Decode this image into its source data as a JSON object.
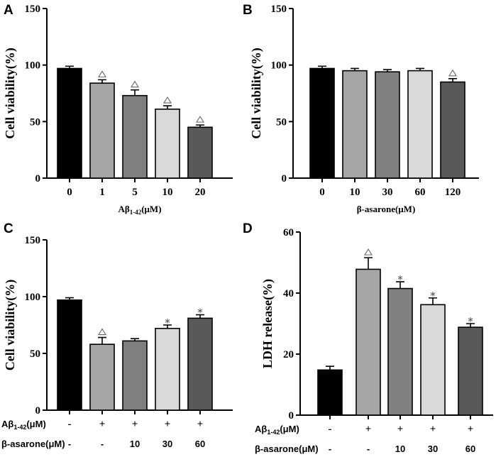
{
  "panel_letters": [
    "A",
    "B",
    "C",
    "D"
  ],
  "shared_labels": {
    "abeta_row_label": "Aβ1-42(μM)",
    "abeta_main": "Aβ",
    "abeta_sub": "1-42",
    "abeta_unit": "(μM)",
    "asarone_row_label": "β-asarone(μM)"
  },
  "chart_data": [
    {
      "panel": "A",
      "type": "bar",
      "ylabel": "Cell viability(%)",
      "xlabel": "Aβ1-42(μM)",
      "xlabel_main": "Aβ",
      "xlabel_sub": "1-42",
      "xlabel_unit": "(μM)",
      "ylim": [
        0,
        150
      ],
      "yticks": [
        0,
        50,
        100,
        150
      ],
      "categories": [
        "0",
        "1",
        "5",
        "10",
        "20"
      ],
      "values": [
        97,
        84,
        73,
        61,
        45
      ],
      "errors": [
        2,
        3,
        5,
        3,
        2
      ],
      "marks": [
        "",
        "△",
        "△",
        "△",
        "△"
      ],
      "colors": [
        "#000000",
        "#a6a6a6",
        "#808080",
        "#d9d9d9",
        "#595959"
      ]
    },
    {
      "panel": "B",
      "type": "bar",
      "ylabel": "Cell viability(%)",
      "xlabel": "β-asarone(μM)",
      "ylim": [
        0,
        150
      ],
      "yticks": [
        0,
        50,
        100,
        150
      ],
      "categories": [
        "0",
        "10",
        "30",
        "60",
        "120"
      ],
      "values": [
        97,
        95,
        94,
        95,
        85
      ],
      "errors": [
        2,
        2,
        2,
        2,
        3
      ],
      "marks": [
        "",
        "",
        "",
        "",
        "△"
      ],
      "colors": [
        "#000000",
        "#a6a6a6",
        "#808080",
        "#d9d9d9",
        "#595959"
      ]
    },
    {
      "panel": "C",
      "type": "bar",
      "ylabel": "Cell viability(%)",
      "ylim": [
        0,
        150
      ],
      "yticks": [
        0,
        50,
        100,
        150
      ],
      "abeta_row": [
        "-",
        "+",
        "+",
        "+",
        "+"
      ],
      "asarone_row": [
        "-",
        "-",
        "10",
        "30",
        "60"
      ],
      "values": [
        97,
        58,
        61,
        72,
        81
      ],
      "errors": [
        2,
        6,
        2,
        3,
        3
      ],
      "marks": [
        "",
        "△",
        "",
        "*",
        "*"
      ],
      "colors": [
        "#000000",
        "#a6a6a6",
        "#808080",
        "#d9d9d9",
        "#595959"
      ]
    },
    {
      "panel": "D",
      "type": "bar",
      "ylabel": "LDH release(%)",
      "ylim": [
        0,
        60
      ],
      "yticks": [
        0,
        20,
        40,
        60
      ],
      "abeta_row": [
        "-",
        "+",
        "+",
        "+",
        "+"
      ],
      "asarone_row": [
        "-",
        "-",
        "10",
        "30",
        "60"
      ],
      "values": [
        14.8,
        47.8,
        41.5,
        36.2,
        28.8
      ],
      "errors": [
        1.2,
        3.8,
        2.2,
        2.2,
        1.2
      ],
      "marks": [
        "",
        "△",
        "*",
        "*",
        "*"
      ],
      "colors": [
        "#000000",
        "#a6a6a6",
        "#808080",
        "#d9d9d9",
        "#595959"
      ]
    }
  ]
}
